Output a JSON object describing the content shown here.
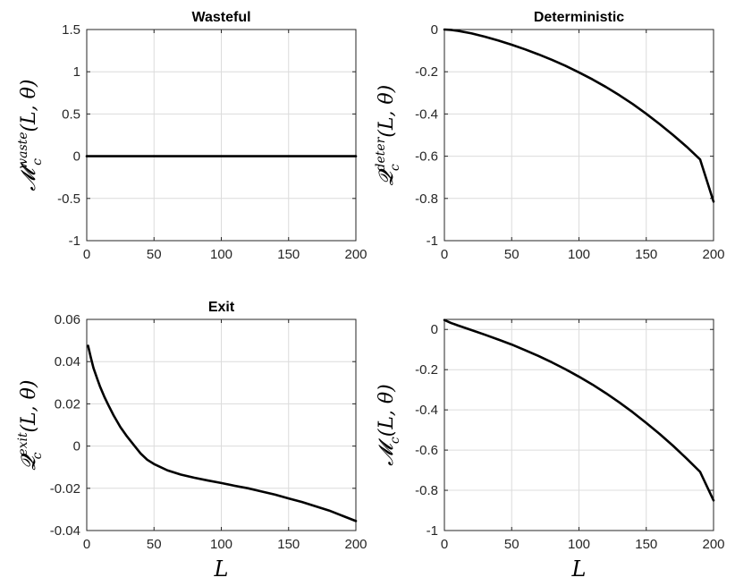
{
  "chart_data": [
    {
      "type": "line",
      "title": "Wasteful",
      "ylabel_main": "𝓜",
      "ylabel_sub": "c",
      "ylabel_sup": "waste",
      "ylabel_args": "(L, θ)",
      "xlabel": "",
      "xlim": [
        0,
        200
      ],
      "ylim": [
        -1,
        1.5
      ],
      "xticks": [
        0,
        50,
        100,
        150,
        200
      ],
      "yticks": [
        -1,
        -0.5,
        0,
        0.5,
        1,
        1.5
      ],
      "xtick_labels": [
        "0",
        "50",
        "100",
        "150",
        "200"
      ],
      "ytick_labels": [
        "-1",
        "-0.5",
        "0",
        "0.5",
        "1",
        "1.5"
      ],
      "grid": true,
      "x": [
        0,
        25,
        50,
        75,
        100,
        125,
        150,
        175,
        200
      ],
      "y": [
        0,
        0,
        0,
        0,
        0,
        0,
        0,
        0,
        0
      ]
    },
    {
      "type": "line",
      "title": "Deterministic",
      "ylabel_main": "𝓠",
      "ylabel_sub": "c",
      "ylabel_sup": "deter",
      "ylabel_args": "(L, θ)",
      "xlabel": "",
      "xlim": [
        0,
        200
      ],
      "ylim": [
        -1,
        0
      ],
      "xticks": [
        0,
        50,
        100,
        150,
        200
      ],
      "yticks": [
        -1,
        -0.8,
        -0.6,
        -0.4,
        -0.2,
        0
      ],
      "xtick_labels": [
        "0",
        "50",
        "100",
        "150",
        "200"
      ],
      "ytick_labels": [
        "-1",
        "-0.8",
        "-0.6",
        "-0.4",
        "-0.2",
        "0"
      ],
      "grid": true,
      "x": [
        0,
        5,
        10,
        20,
        30,
        40,
        50,
        60,
        70,
        80,
        90,
        100,
        110,
        120,
        130,
        140,
        150,
        160,
        170,
        180,
        190,
        200
      ],
      "y": [
        0,
        -0.002,
        -0.006,
        -0.018,
        -0.034,
        -0.052,
        -0.072,
        -0.094,
        -0.118,
        -0.144,
        -0.172,
        -0.203,
        -0.236,
        -0.272,
        -0.311,
        -0.353,
        -0.399,
        -0.448,
        -0.5,
        -0.555,
        -0.615,
        -0.815
      ]
    },
    {
      "type": "line",
      "title": "Exit",
      "ylabel_main": "𝓠",
      "ylabel_sub": "c",
      "ylabel_sup": "exit",
      "ylabel_args": "(L, θ)",
      "xlabel": "L",
      "xlim": [
        0,
        200
      ],
      "ylim": [
        -0.04,
        0.06
      ],
      "xticks": [
        0,
        50,
        100,
        150,
        200
      ],
      "yticks": [
        -0.04,
        -0.02,
        0,
        0.02,
        0.04,
        0.06
      ],
      "xtick_labels": [
        "0",
        "50",
        "100",
        "150",
        "200"
      ],
      "ytick_labels": [
        "-0.04",
        "-0.02",
        "0",
        "0.02",
        "0.04",
        "0.06"
      ],
      "grid": true,
      "x": [
        1,
        3,
        5,
        8,
        10,
        13,
        16,
        20,
        25,
        30,
        35,
        40,
        45,
        50,
        60,
        70,
        80,
        90,
        100,
        110,
        120,
        130,
        140,
        150,
        160,
        170,
        180,
        190,
        200
      ],
      "y": [
        0.0475,
        0.042,
        0.037,
        0.0315,
        0.028,
        0.0235,
        0.0195,
        0.0145,
        0.009,
        0.0045,
        0.0005,
        -0.0035,
        -0.0065,
        -0.0085,
        -0.0115,
        -0.0135,
        -0.015,
        -0.0163,
        -0.0175,
        -0.0188,
        -0.02,
        -0.0215,
        -0.023,
        -0.0248,
        -0.0265,
        -0.0285,
        -0.0305,
        -0.033,
        -0.0355
      ]
    },
    {
      "type": "line",
      "title": "",
      "ylabel_main": "𝓜",
      "ylabel_sub": "c",
      "ylabel_sup": "",
      "ylabel_args": "(L, θ)",
      "xlabel": "L",
      "xlim": [
        0,
        200
      ],
      "ylim": [
        -1,
        0.05
      ],
      "xticks": [
        0,
        50,
        100,
        150,
        200
      ],
      "yticks": [
        -1,
        -0.8,
        -0.6,
        -0.4,
        -0.2,
        0
      ],
      "xtick_labels": [
        "0",
        "50",
        "100",
        "150",
        "200"
      ],
      "ytick_labels": [
        "-1",
        "-0.8",
        "-0.6",
        "-0.4",
        "-0.2",
        "0"
      ],
      "grid": true,
      "x": [
        0,
        5,
        10,
        20,
        30,
        40,
        50,
        60,
        70,
        80,
        90,
        100,
        110,
        120,
        130,
        140,
        150,
        160,
        170,
        180,
        190,
        200
      ],
      "y": [
        0.047,
        0.032,
        0.02,
        -0.003,
        -0.026,
        -0.05,
        -0.075,
        -0.103,
        -0.132,
        -0.164,
        -0.198,
        -0.235,
        -0.274,
        -0.317,
        -0.363,
        -0.412,
        -0.465,
        -0.52,
        -0.579,
        -0.642,
        -0.708,
        -0.85
      ]
    }
  ]
}
